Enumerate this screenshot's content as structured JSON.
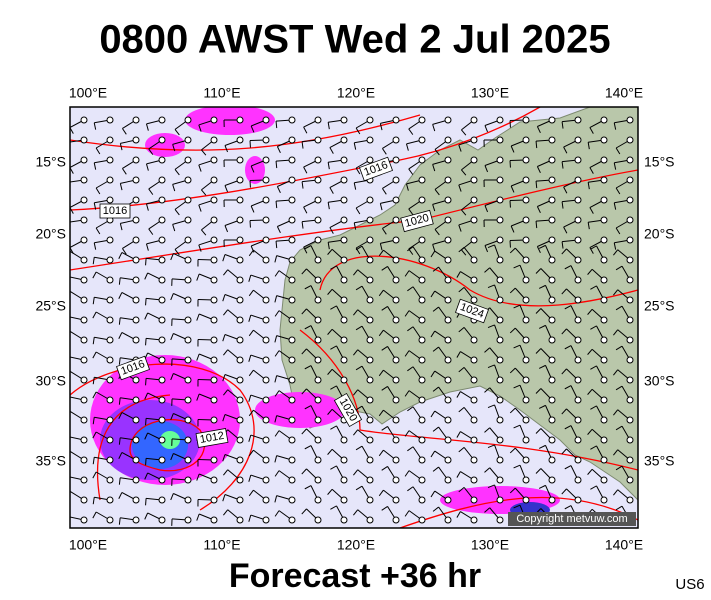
{
  "title": "0800 AWST Wed 2 Jul 2025",
  "map": {
    "lon_labels": [
      "100°E",
      "110°E",
      "120°E",
      "130°E",
      "140°E"
    ],
    "lat_labels": [
      "15°S",
      "20°S",
      "25°S",
      "30°S",
      "35°S"
    ],
    "isobar_labels": [
      "1016",
      "1016",
      "1020",
      "1024",
      "1020",
      "1016",
      "1012"
    ],
    "copyright": "Copyright metvuw.com"
  },
  "footer": {
    "forecast": "Forecast +36 hr",
    "code": "US6"
  }
}
